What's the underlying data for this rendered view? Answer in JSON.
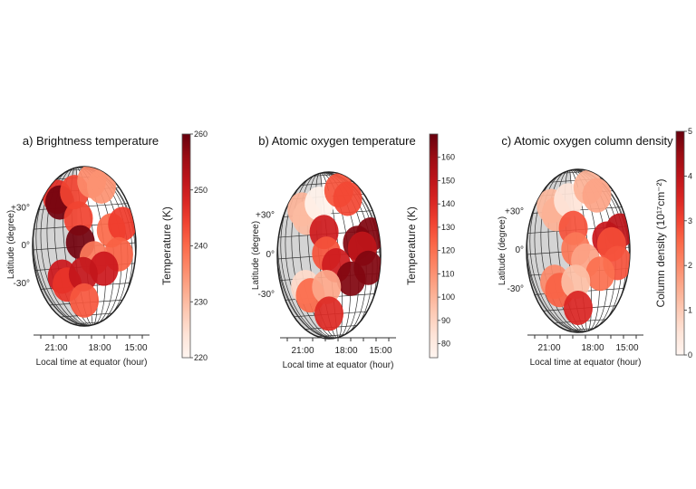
{
  "chart_data": [
    {
      "type": "scatter",
      "panel": "a",
      "title": "a) Brightness temperature",
      "xlabel": "Local time at equator (hour)",
      "ylabel": "Latitude (degree)",
      "xticks": [
        "21:00",
        "18:00",
        "15:00"
      ],
      "yticks": [
        "+30°",
        "0°",
        "-30°"
      ],
      "colorbar": {
        "label": "Temperature (K)",
        "min": 220,
        "max": 260,
        "ticks": [
          220,
          230,
          240,
          250,
          260
        ]
      },
      "points": [
        {
          "lon": -0.55,
          "lat": 0.62,
          "value": 247
        },
        {
          "lon": -0.5,
          "lat": 0.55,
          "value": 259
        },
        {
          "lon": -0.2,
          "lat": 0.68,
          "value": 244
        },
        {
          "lon": 0.15,
          "lat": 0.82,
          "value": 236
        },
        {
          "lon": 0.35,
          "lat": 0.75,
          "value": 235
        },
        {
          "lon": -0.12,
          "lat": 0.35,
          "value": 244
        },
        {
          "lon": -0.08,
          "lat": 0.05,
          "value": 259
        },
        {
          "lon": 0.55,
          "lat": 0.2,
          "value": 240
        },
        {
          "lon": 0.78,
          "lat": 0.28,
          "value": 245
        },
        {
          "lon": 0.7,
          "lat": -0.1,
          "value": 241
        },
        {
          "lon": 0.2,
          "lat": -0.15,
          "value": 238
        },
        {
          "lon": 0.4,
          "lat": -0.28,
          "value": 250
        },
        {
          "lon": -0.45,
          "lat": -0.38,
          "value": 250
        },
        {
          "lon": -0.35,
          "lat": -0.48,
          "value": 246
        },
        {
          "lon": -0.02,
          "lat": -0.35,
          "value": 251
        },
        {
          "lon": 0.0,
          "lat": -0.68,
          "value": 242
        }
      ]
    },
    {
      "type": "scatter",
      "panel": "b",
      "title": "b) Atomic oxygen temperature",
      "xlabel": "Local time at equator (hour)",
      "ylabel": "Latitude (degree)",
      "xticks": [
        "21:00",
        "18:00",
        "15:00"
      ],
      "yticks": [
        "+30°",
        "0°",
        "-30°"
      ],
      "colorbar": {
        "label": "Temperature (K)",
        "min": 74,
        "max": 170,
        "ticks": [
          80,
          90,
          100,
          110,
          120,
          130,
          140,
          150,
          160
        ]
      },
      "points": [
        {
          "lon": -0.55,
          "lat": 0.55,
          "value": 100
        },
        {
          "lon": -0.45,
          "lat": 0.45,
          "value": 98
        },
        {
          "lon": -0.2,
          "lat": 0.62,
          "value": 76
        },
        {
          "lon": 0.2,
          "lat": 0.78,
          "value": 128
        },
        {
          "lon": 0.38,
          "lat": 0.68,
          "value": 131
        },
        {
          "lon": -0.1,
          "lat": 0.28,
          "value": 145
        },
        {
          "lon": -0.05,
          "lat": 0.02,
          "value": 128
        },
        {
          "lon": 0.58,
          "lat": 0.15,
          "value": 165
        },
        {
          "lon": 0.85,
          "lat": 0.25,
          "value": 165
        },
        {
          "lon": 0.68,
          "lat": 0.08,
          "value": 150
        },
        {
          "lon": 0.8,
          "lat": -0.15,
          "value": 165
        },
        {
          "lon": 0.15,
          "lat": -0.12,
          "value": 145
        },
        {
          "lon": 0.45,
          "lat": -0.28,
          "value": 165
        },
        {
          "lon": -0.48,
          "lat": -0.38,
          "value": 88
        },
        {
          "lon": -0.38,
          "lat": -0.48,
          "value": 122
        },
        {
          "lon": -0.05,
          "lat": -0.38,
          "value": 104
        },
        {
          "lon": 0.0,
          "lat": -0.7,
          "value": 140
        }
      ]
    },
    {
      "type": "scatter",
      "panel": "c",
      "title": "c) Atomic oxygen column density",
      "xlabel": "Local time at equator (hour)",
      "ylabel": "Latitude (degree)",
      "xticks": [
        "21:00",
        "18:00",
        "15:00"
      ],
      "yticks": [
        "+30°",
        "0°",
        "-30°"
      ],
      "colorbar": {
        "label": "Column density (10¹⁷cm⁻²)",
        "min": 0,
        "max": 5,
        "ticks": [
          0,
          1,
          2,
          3,
          4,
          5
        ]
      },
      "points": [
        {
          "lon": -0.55,
          "lat": 0.55,
          "value": 1.3
        },
        {
          "lon": -0.45,
          "lat": 0.45,
          "value": 1.4
        },
        {
          "lon": -0.2,
          "lat": 0.62,
          "value": 0.5
        },
        {
          "lon": 0.2,
          "lat": 0.78,
          "value": 1.4
        },
        {
          "lon": 0.38,
          "lat": 0.68,
          "value": 1.6
        },
        {
          "lon": -0.1,
          "lat": 0.28,
          "value": 2.8
        },
        {
          "lon": -0.05,
          "lat": 0.02,
          "value": 2.3
        },
        {
          "lon": 0.58,
          "lat": 0.15,
          "value": 3.8
        },
        {
          "lon": 0.85,
          "lat": 0.25,
          "value": 4.0
        },
        {
          "lon": 0.68,
          "lat": 0.08,
          "value": 2.9
        },
        {
          "lon": 0.8,
          "lat": -0.15,
          "value": 2.8
        },
        {
          "lon": 0.15,
          "lat": -0.12,
          "value": 1.6
        },
        {
          "lon": 0.45,
          "lat": -0.28,
          "value": 2.4
        },
        {
          "lon": -0.48,
          "lat": -0.38,
          "value": 2.0
        },
        {
          "lon": -0.38,
          "lat": -0.48,
          "value": 2.6
        },
        {
          "lon": -0.05,
          "lat": -0.38,
          "value": 1.2
        },
        {
          "lon": 0.0,
          "lat": -0.7,
          "value": 3.5
        }
      ]
    }
  ]
}
